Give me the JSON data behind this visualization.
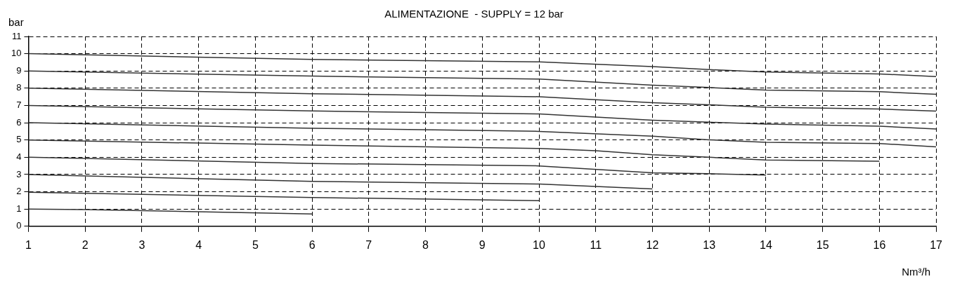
{
  "chart_data": {
    "type": "line",
    "title": "ALIMENTAZIONE  - SUPPLY = 12 bar",
    "xlabel": "Nm³/h",
    "ylabel": "bar",
    "xlim": [
      1,
      17
    ],
    "xticks": [
      1,
      2,
      3,
      4,
      5,
      6,
      7,
      8,
      9,
      10,
      11,
      12,
      13,
      14,
      15,
      16,
      17
    ],
    "ylim": [
      0,
      11
    ],
    "yticks": [
      0,
      1,
      2,
      3,
      4,
      5,
      6,
      7,
      8,
      9,
      10,
      11
    ],
    "grid": true,
    "legend": false,
    "marker": "none",
    "line_style": "solid",
    "series": [
      {
        "color": "#333333",
        "x": [
          1,
          2,
          6
        ],
        "values": [
          1.0,
          0.97,
          0.71
        ]
      },
      {
        "color": "#333333",
        "x": [
          1,
          6,
          10
        ],
        "values": [
          1.97,
          1.67,
          1.48
        ]
      },
      {
        "color": "#333333",
        "x": [
          1,
          6,
          10,
          12
        ],
        "values": [
          3.0,
          2.6,
          2.45,
          2.17
        ]
      },
      {
        "color": "#333333",
        "x": [
          1,
          6,
          10,
          12,
          13,
          14
        ],
        "values": [
          4.0,
          3.64,
          3.5,
          3.1,
          3.05,
          2.97
        ]
      },
      {
        "color": "#333333",
        "x": [
          1,
          6,
          10,
          11,
          12,
          13,
          14,
          16
        ],
        "values": [
          5.0,
          4.7,
          4.51,
          4.38,
          4.15,
          4.0,
          3.84,
          3.77
        ]
      },
      {
        "color": "#333333",
        "x": [
          1,
          6,
          10,
          12,
          13,
          14,
          16,
          17
        ],
        "values": [
          6.0,
          5.68,
          5.5,
          5.22,
          5.01,
          4.87,
          4.8,
          4.6
        ]
      },
      {
        "color": "#333333",
        "x": [
          1,
          6,
          10,
          12,
          13,
          14,
          16,
          17
        ],
        "values": [
          7.0,
          6.68,
          6.51,
          6.15,
          6.03,
          5.92,
          5.8,
          5.64
        ]
      },
      {
        "color": "#333333",
        "x": [
          1,
          6,
          10,
          12,
          13,
          14,
          16,
          17
        ],
        "values": [
          8.0,
          7.68,
          7.51,
          7.16,
          7.04,
          6.9,
          6.8,
          6.67
        ]
      },
      {
        "color": "#333333",
        "x": [
          1,
          6,
          10,
          12,
          13,
          14,
          16,
          17
        ],
        "values": [
          9.0,
          8.7,
          8.53,
          8.18,
          8.04,
          7.89,
          7.8,
          7.65
        ]
      },
      {
        "color": "#333333",
        "x": [
          1,
          6,
          10,
          12,
          13,
          14,
          16,
          17
        ],
        "values": [
          10.0,
          9.67,
          9.53,
          9.25,
          9.08,
          8.94,
          8.83,
          8.67
        ]
      }
    ]
  }
}
